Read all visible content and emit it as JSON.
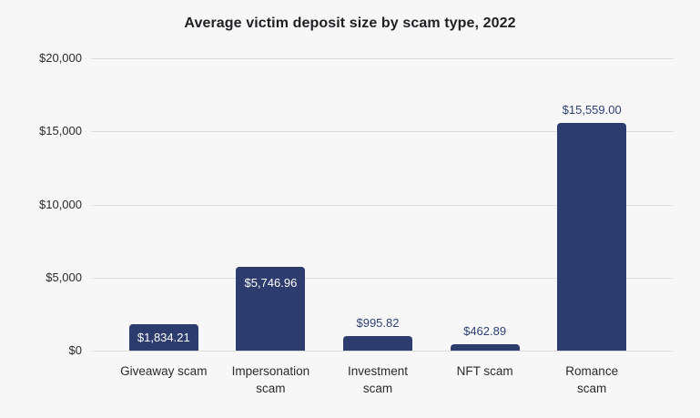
{
  "title": "Average victim deposit size by scam type, 2022",
  "colors": {
    "background": "#f7f7f8",
    "bar": "#2c3c6e",
    "grid": "#dcdcdd",
    "title_text": "#1f1f24",
    "axis_text": "#2b2b2b",
    "value_label_inside": "#ffffff",
    "value_label_above": "#2e4274"
  },
  "chart_data": {
    "type": "bar",
    "title": "Average victim deposit size by scam type, 2022",
    "xlabel": "",
    "ylabel": "",
    "categories": [
      "Giveaway scam",
      "Impersonation scam",
      "Investment scam",
      "NFT scam",
      "Romance scam"
    ],
    "category_lines": [
      [
        "Giveaway scam"
      ],
      [
        "Impersonation",
        "scam"
      ],
      [
        "Investment",
        "scam"
      ],
      [
        "NFT scam"
      ],
      [
        "Romance",
        "scam"
      ]
    ],
    "values": [
      1834.21,
      5746.96,
      995.82,
      462.89,
      15559.0
    ],
    "value_labels": [
      "$1,834.21",
      "$5,746.96",
      "$995.82",
      "$462.89",
      "$15,559.00"
    ],
    "value_label_positions": [
      "inside",
      "inside",
      "above",
      "above",
      "above"
    ],
    "y_ticks": [
      "$0",
      "$5,000",
      "$10,000",
      "$15,000",
      "$20,000"
    ],
    "y_tick_values": [
      0,
      5000,
      10000,
      15000,
      20000
    ],
    "ylim": [
      0,
      20000
    ],
    "grid": "horizontal",
    "legend": "none"
  }
}
